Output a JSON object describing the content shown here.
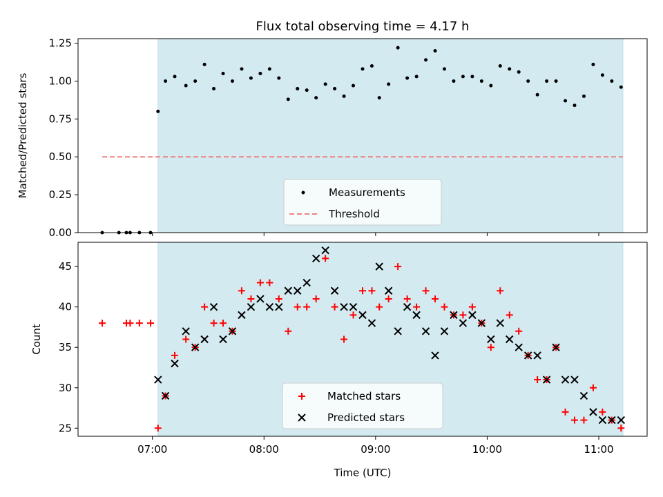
{
  "chart_data": [
    {
      "type": "scatter",
      "title": "Flux total observing time = 4.17 h",
      "ylabel": "Matched/Predicted stars",
      "xlabel": "",
      "xlim": [
        "06:20",
        "11:26"
      ],
      "ylim": [
        0,
        1.28
      ],
      "yticks": [
        "0.00",
        "0.25",
        "0.50",
        "0.75",
        "1.00",
        "1.25"
      ],
      "xticks": [
        "07:00",
        "08:00",
        "09:00",
        "10:00",
        "11:00"
      ],
      "shaded_span": [
        "07:03",
        "11:13"
      ],
      "shade_color": "#d3eaf0",
      "legend": {
        "position": "lower center",
        "entries": [
          "Measurements",
          "Threshold"
        ]
      },
      "threshold": {
        "name": "Threshold",
        "value": 0.5,
        "x_range": [
          "06:33",
          "11:13"
        ],
        "color": "#f08080"
      },
      "series": [
        {
          "name": "Measurements",
          "color": "#000000",
          "x": [
            "06:33",
            "06:42",
            "06:46",
            "06:48",
            "06:53",
            "06:59",
            "07:03",
            "07:07",
            "07:12",
            "07:18",
            "07:23",
            "07:28",
            "07:33",
            "07:38",
            "07:43",
            "07:48",
            "07:53",
            "07:58",
            "08:03",
            "08:08",
            "08:13",
            "08:18",
            "08:23",
            "08:28",
            "08:33",
            "08:38",
            "08:43",
            "08:48",
            "08:53",
            "08:58",
            "09:02",
            "09:07",
            "09:12",
            "09:17",
            "09:22",
            "09:27",
            "09:32",
            "09:37",
            "09:42",
            "09:47",
            "09:52",
            "09:57",
            "10:02",
            "10:07",
            "10:12",
            "10:17",
            "10:22",
            "10:27",
            "10:32",
            "10:37",
            "10:42",
            "10:47",
            "10:52",
            "10:57",
            "11:02",
            "11:07",
            "11:12"
          ],
          "y": [
            0,
            0,
            0,
            0,
            0,
            0,
            0.8,
            1.0,
            1.03,
            0.97,
            1.0,
            1.11,
            0.95,
            1.05,
            1.0,
            1.08,
            1.02,
            1.05,
            1.08,
            1.02,
            0.88,
            0.95,
            0.94,
            0.89,
            0.98,
            0.95,
            0.9,
            0.97,
            1.08,
            1.1,
            0.89,
            0.98,
            1.22,
            1.02,
            1.03,
            1.14,
            1.2,
            1.08,
            1.0,
            1.03,
            1.03,
            1.0,
            0.97,
            1.1,
            1.08,
            1.06,
            1.0,
            0.91,
            1.0,
            1.0,
            0.87,
            0.84,
            0.9,
            1.11,
            1.04,
            1.0,
            0.96
          ]
        }
      ]
    },
    {
      "type": "scatter",
      "title": "",
      "ylabel": "Count",
      "xlabel": "Time (UTC)",
      "xlim": [
        "06:20",
        "11:26"
      ],
      "ylim": [
        24,
        48
      ],
      "yticks": [
        "25",
        "30",
        "35",
        "40",
        "45"
      ],
      "xticks": [
        "07:00",
        "08:00",
        "09:00",
        "10:00",
        "11:00"
      ],
      "shaded_span": [
        "07:03",
        "11:13"
      ],
      "shade_color": "#d3eaf0",
      "legend": {
        "position": "lower center",
        "entries": [
          "Matched stars",
          "Predicted stars"
        ]
      },
      "series": [
        {
          "name": "Matched stars",
          "marker": "+",
          "color": "#ff0000",
          "x": [
            "06:33",
            "06:46",
            "06:48",
            "06:53",
            "06:59",
            "07:03",
            "07:07",
            "07:12",
            "07:18",
            "07:23",
            "07:28",
            "07:33",
            "07:38",
            "07:43",
            "07:48",
            "07:53",
            "07:58",
            "08:03",
            "08:08",
            "08:13",
            "08:18",
            "08:23",
            "08:28",
            "08:33",
            "08:38",
            "08:43",
            "08:48",
            "08:53",
            "08:58",
            "09:02",
            "09:07",
            "09:12",
            "09:17",
            "09:22",
            "09:27",
            "09:32",
            "09:37",
            "09:42",
            "09:47",
            "09:52",
            "09:57",
            "10:02",
            "10:07",
            "10:12",
            "10:17",
            "10:22",
            "10:27",
            "10:32",
            "10:37",
            "10:42",
            "10:47",
            "10:52",
            "10:57",
            "11:02",
            "11:07",
            "11:12"
          ],
          "y": [
            38,
            38,
            38,
            38,
            38,
            25,
            29,
            34,
            36,
            35,
            40,
            38,
            38,
            37,
            42,
            41,
            43,
            43,
            41,
            37,
            40,
            40,
            41,
            46,
            40,
            36,
            39,
            42,
            42,
            40,
            41,
            45,
            41,
            40,
            42,
            41,
            40,
            39,
            39,
            40,
            38,
            35,
            42,
            39,
            37,
            34,
            31,
            31,
            35,
            27,
            26,
            26,
            30,
            27,
            26,
            25
          ]
        },
        {
          "name": "Predicted stars",
          "marker": "x",
          "color": "#000000",
          "x": [
            "07:03",
            "07:07",
            "07:12",
            "07:18",
            "07:23",
            "07:28",
            "07:33",
            "07:38",
            "07:43",
            "07:48",
            "07:53",
            "07:58",
            "08:03",
            "08:08",
            "08:13",
            "08:18",
            "08:23",
            "08:28",
            "08:33",
            "08:38",
            "08:43",
            "08:48",
            "08:53",
            "08:58",
            "09:02",
            "09:07",
            "09:12",
            "09:17",
            "09:22",
            "09:27",
            "09:32",
            "09:37",
            "09:42",
            "09:47",
            "09:52",
            "09:57",
            "10:02",
            "10:07",
            "10:12",
            "10:17",
            "10:22",
            "10:27",
            "10:32",
            "10:37",
            "10:42",
            "10:47",
            "10:52",
            "10:57",
            "11:02",
            "11:07",
            "11:12"
          ],
          "y": [
            31,
            29,
            33,
            37,
            35,
            36,
            40,
            36,
            37,
            39,
            40,
            41,
            40,
            40,
            42,
            42,
            43,
            46,
            47,
            42,
            40,
            40,
            39,
            38,
            45,
            42,
            37,
            40,
            39,
            37,
            34,
            37,
            39,
            38,
            39,
            38,
            36,
            38,
            36,
            35,
            34,
            34,
            31,
            35,
            31,
            31,
            29,
            27,
            26,
            26,
            26
          ]
        }
      ]
    }
  ]
}
